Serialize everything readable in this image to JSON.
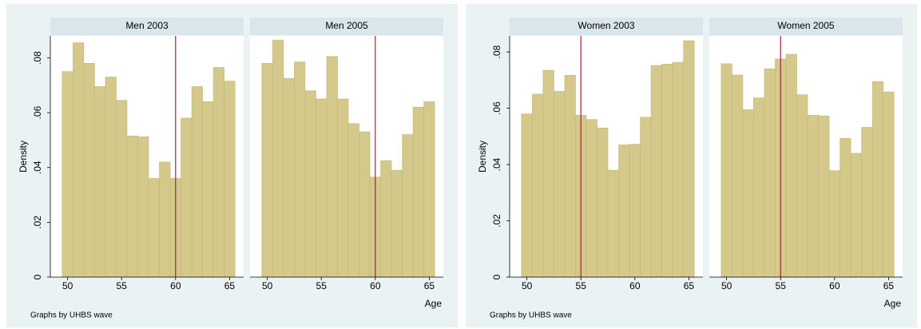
{
  "chart_data": [
    {
      "type": "histogram",
      "ylabel": "Density",
      "xlabel": "Age",
      "note": "Graphs by UHBS wave",
      "xlim": [
        48.4,
        66.3
      ],
      "xticks": [
        50,
        55,
        60,
        65
      ],
      "ylim": [
        0,
        0.088
      ],
      "yticks": [
        0,
        {
          "value": 0.02,
          "label": ".02"
        },
        {
          "value": 0.04,
          "label": ".04"
        },
        {
          "value": 0.06,
          "label": ".06"
        },
        {
          "value": 0.08,
          "label": ".08"
        }
      ],
      "color": "#d4c98a",
      "vline_color": "#a3203c",
      "panels": [
        {
          "title": "Men 2003",
          "vline": 60,
          "bins": [
            49.5,
            50.5,
            51.5,
            52.5,
            53.5,
            54.5,
            55.5,
            56.5,
            57.5,
            58.5,
            59.5,
            60.5,
            61.5,
            62.5,
            63.5,
            64.5,
            65.5
          ],
          "values": [
            0.075,
            0.0855,
            0.078,
            0.0695,
            0.073,
            0.0645,
            0.0515,
            0.0512,
            0.036,
            0.042,
            0.036,
            0.058,
            0.0695,
            0.064,
            0.0765,
            0.0715
          ]
        },
        {
          "title": "Men 2005",
          "vline": 60,
          "bins": [
            49.5,
            50.5,
            51.5,
            52.5,
            53.5,
            54.5,
            55.5,
            56.5,
            57.5,
            58.5,
            59.5,
            60.5,
            61.5,
            62.5,
            63.5,
            64.5,
            65.5
          ],
          "values": [
            0.078,
            0.0865,
            0.0725,
            0.0785,
            0.068,
            0.065,
            0.0805,
            0.065,
            0.056,
            0.053,
            0.0365,
            0.0425,
            0.039,
            0.052,
            0.062,
            0.064
          ]
        }
      ]
    },
    {
      "type": "histogram",
      "ylabel": "Density",
      "xlabel": "Age",
      "note": "Graphs by UHBS wave",
      "xlim": [
        48.4,
        66.3
      ],
      "xticks": [
        50,
        55,
        60,
        65
      ],
      "ylim": [
        0,
        0.0857
      ],
      "yticks": [
        0,
        {
          "value": 0.02,
          "label": ".02"
        },
        {
          "value": 0.04,
          "label": ".04"
        },
        {
          "value": 0.06,
          "label": ".06"
        },
        {
          "value": 0.08,
          "label": ".08"
        }
      ],
      "color": "#d4c98a",
      "vline_color": "#a3203c",
      "panels": [
        {
          "title": "Women 2003",
          "vline": 55,
          "bins": [
            49.5,
            50.5,
            51.5,
            52.5,
            53.5,
            54.5,
            55.5,
            56.5,
            57.5,
            58.5,
            59.5,
            60.5,
            61.5,
            62.5,
            63.5,
            64.5,
            65.5
          ],
          "values": [
            0.058,
            0.065,
            0.0735,
            0.066,
            0.0717,
            0.0575,
            0.056,
            0.053,
            0.038,
            0.047,
            0.0472,
            0.0568,
            0.0752,
            0.0757,
            0.0763,
            0.084
          ]
        },
        {
          "title": "Women 2005",
          "vline": 55,
          "bins": [
            49.5,
            50.5,
            51.5,
            52.5,
            53.5,
            54.5,
            55.5,
            56.5,
            57.5,
            58.5,
            59.5,
            60.5,
            61.5,
            62.5,
            63.5,
            64.5,
            65.5
          ],
          "values": [
            0.0758,
            0.0718,
            0.0595,
            0.0637,
            0.074,
            0.0775,
            0.0792,
            0.0648,
            0.0575,
            0.0573,
            0.0378,
            0.0493,
            0.044,
            0.0532,
            0.0695,
            0.0658
          ]
        }
      ]
    }
  ]
}
